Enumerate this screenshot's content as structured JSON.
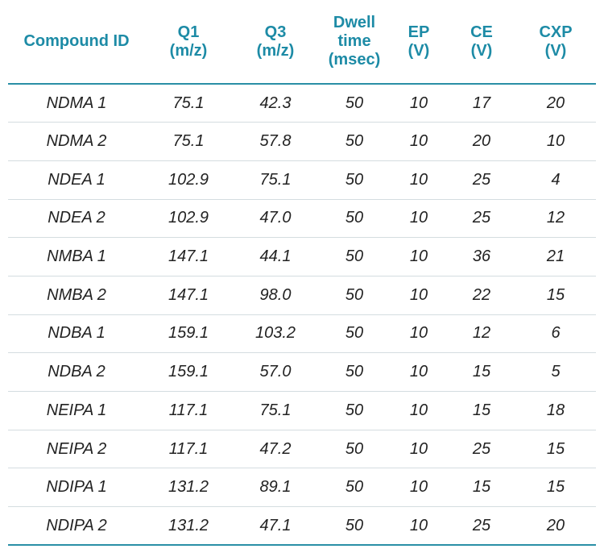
{
  "table": {
    "headers": [
      [
        "Compound ID"
      ],
      [
        "Q1",
        "(m/z)"
      ],
      [
        "Q3",
        "(m/z)"
      ],
      [
        "Dwell",
        "time",
        "(msec)"
      ],
      [
        "EP",
        "(V)"
      ],
      [
        "CE",
        "(V)"
      ],
      [
        "CXP",
        "(V)"
      ]
    ],
    "rows": [
      [
        "NDMA 1",
        "75.1",
        "42.3",
        "50",
        "10",
        "17",
        "20"
      ],
      [
        "NDMA 2",
        "75.1",
        "57.8",
        "50",
        "10",
        "20",
        "10"
      ],
      [
        "NDEA 1",
        "102.9",
        "75.1",
        "50",
        "10",
        "25",
        "4"
      ],
      [
        "NDEA 2",
        "102.9",
        "47.0",
        "50",
        "10",
        "25",
        "12"
      ],
      [
        "NMBA 1",
        "147.1",
        "44.1",
        "50",
        "10",
        "36",
        "21"
      ],
      [
        "NMBA 2",
        "147.1",
        "98.0",
        "50",
        "10",
        "22",
        "15"
      ],
      [
        "NDBA 1",
        "159.1",
        "103.2",
        "50",
        "10",
        "12",
        "6"
      ],
      [
        "NDBA 2",
        "159.1",
        "57.0",
        "50",
        "10",
        "15",
        "5"
      ],
      [
        "NEIPA 1",
        "117.1",
        "75.1",
        "50",
        "10",
        "15",
        "18"
      ],
      [
        "NEIPA 2",
        "117.1",
        "47.2",
        "50",
        "10",
        "25",
        "15"
      ],
      [
        "NDIPA 1",
        "131.2",
        "89.1",
        "50",
        "10",
        "15",
        "15"
      ],
      [
        "NDIPA 2",
        "131.2",
        "47.1",
        "50",
        "10",
        "25",
        "20"
      ]
    ]
  },
  "colors": {
    "header_text": "#1d8ba6",
    "rule": "#2a8fa6",
    "row_divider": "#d4dde0",
    "cell_text": "#222222"
  }
}
